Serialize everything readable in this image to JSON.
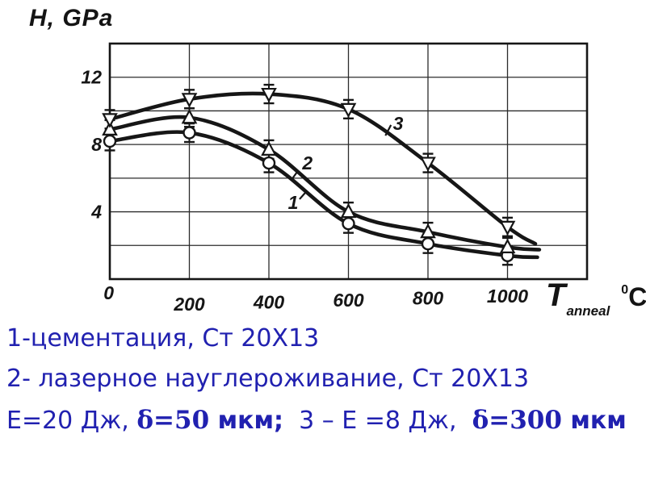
{
  "page": {
    "background": "#ffffff",
    "ink": "#161616"
  },
  "chart": {
    "title": "H, GPa",
    "x_axis_label": {
      "symbol": "T",
      "subscript": "anneal",
      "superscript": "0",
      "unit": "C"
    },
    "origin_label": "0"
  },
  "chart_data": {
    "type": "line",
    "title": "H, GPa",
    "xlabel": "T anneal, 0C",
    "ylabel": "H, GPa",
    "xlim": [
      0,
      1200
    ],
    "ylim": [
      0,
      14
    ],
    "grid": true,
    "legend_position": "none",
    "xticks": [
      200,
      400,
      600,
      800,
      1000
    ],
    "yticks": [
      4,
      8,
      12
    ],
    "ygrid_step": 2,
    "x": [
      0,
      200,
      400,
      600,
      800,
      1000
    ],
    "error_bar": 0.55,
    "series": [
      {
        "label": "1",
        "marker": "circle",
        "name": "цементация, Ст 20X13",
        "values": [
          8.2,
          8.7,
          6.9,
          3.3,
          2.1,
          1.4
        ],
        "tail": [
          [
            1075,
            1.3
          ]
        ]
      },
      {
        "label": "2",
        "marker": "triangle-up",
        "name": "лазерное науглероживание, Ст 20X13, Е=20 Дж, δ=50 мкм",
        "values": [
          8.9,
          9.6,
          7.7,
          4.0,
          2.8,
          1.9
        ],
        "tail": [
          [
            1080,
            1.75
          ]
        ]
      },
      {
        "label": "3",
        "marker": "triangle-down",
        "name": "лазерное науглероживание, Е=8 Дж, δ=300 мкм",
        "values": [
          9.5,
          10.7,
          11.0,
          10.1,
          6.9,
          3.1
        ],
        "tail": [
          [
            1070,
            2.1
          ]
        ]
      }
    ],
    "annotations": [
      {
        "text": "1",
        "x": 461,
        "y": 4.55,
        "leader": [
          [
            477,
            4.75
          ],
          [
            494,
            5.2
          ]
        ]
      },
      {
        "text": "2",
        "x": 497,
        "y": 6.9,
        "leader": [
          [
            473,
            6.43
          ],
          [
            455,
            5.85
          ]
        ]
      },
      {
        "text": "3",
        "x": 725,
        "y": 9.25,
        "leader": [
          [
            693,
            8.53
          ],
          [
            707,
            9.16
          ]
        ]
      }
    ]
  },
  "caption": {
    "color": "#2121b0",
    "line1": "1-цементация, Ст 20X13",
    "line2": "2- лазерное науглероживание, Ст 20X13",
    "line3_segments": [
      {
        "text": "Е=20 Дж, ",
        "style": "sans"
      },
      {
        "text": "δ=50",
        "style": "serif-bold"
      },
      {
        "text": " мкм;",
        "style": "sans-bold"
      },
      {
        "text": "  3 – Е =8 Дж,  ",
        "style": "sans"
      },
      {
        "text": "δ=300",
        "style": "serif-bold"
      },
      {
        "text": " мкм",
        "style": "sans-bold"
      }
    ]
  }
}
